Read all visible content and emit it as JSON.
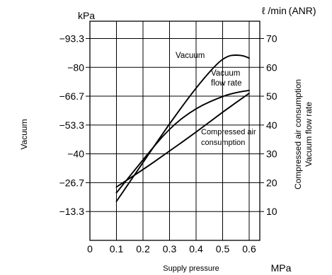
{
  "chart_data": {
    "type": "line",
    "left_unit": "kPa",
    "right_unit": "ℓ /min (ANR)",
    "bottom_unit": "MPa",
    "xlabel": "Supply pressure",
    "ylabel_left": "Vacuum",
    "ylabel_right_1": "Compressed air consumption",
    "ylabel_right_2": "Vacuum flow rate",
    "x_ticks": [
      0,
      0.1,
      0.2,
      0.3,
      0.4,
      0.5,
      0.6
    ],
    "x_tick_labels": [
      "0",
      "0.1",
      "0.2",
      "0.3",
      "0.4",
      "0.5",
      "0.6"
    ],
    "left_ticks": [
      {
        "label": "−93.3",
        "value": 70
      },
      {
        "label": "−80",
        "value": 60
      },
      {
        "label": "−66.7",
        "value": 50
      },
      {
        "label": "−53.3",
        "value": 40
      },
      {
        "label": "−40",
        "value": 30
      },
      {
        "label": "−26.7",
        "value": 20
      },
      {
        "label": "−13.3",
        "value": 10
      }
    ],
    "right_ticks": [
      70,
      60,
      50,
      40,
      30,
      20,
      10
    ],
    "right_tick_labels": [
      "70",
      "60",
      "50",
      "40",
      "30",
      "20",
      "10"
    ],
    "xlim": [
      0,
      0.64
    ],
    "ylim": [
      0,
      76
    ],
    "series": [
      {
        "name": "Vacuum",
        "x": [
          0.1,
          0.2,
          0.3,
          0.4,
          0.48,
          0.52,
          0.55,
          0.58,
          0.6
        ],
        "y": [
          13.5,
          27,
          40.5,
          53,
          61.5,
          64,
          64.3,
          64,
          63.2
        ]
      },
      {
        "name": "Vacuum flow rate",
        "x": [
          0.1,
          0.2,
          0.3,
          0.4,
          0.5,
          0.55,
          0.6
        ],
        "y": [
          16.5,
          28,
          39,
          46,
          50,
          51.3,
          52
        ]
      },
      {
        "name": "Compressed air consumption",
        "x": [
          0.1,
          0.2,
          0.3,
          0.4,
          0.5,
          0.6
        ],
        "y": [
          18.5,
          24.5,
          31,
          37.5,
          44.5,
          51
        ]
      }
    ],
    "annotations": [
      {
        "text": "Vacuum",
        "anchor_series": "Vacuum"
      },
      {
        "text": "Vacuum",
        "anchor_series": "Vacuum flow rate"
      },
      {
        "text": "flow rate",
        "anchor_series": "Vacuum flow rate"
      },
      {
        "text": "Compressed air",
        "anchor_series": "Compressed air consumption"
      },
      {
        "text": "consumption",
        "anchor_series": "Compressed air consumption"
      }
    ],
    "grid": true,
    "line_color": "#000000",
    "grid_color": "#000000",
    "plot_background": "#ffffff"
  }
}
